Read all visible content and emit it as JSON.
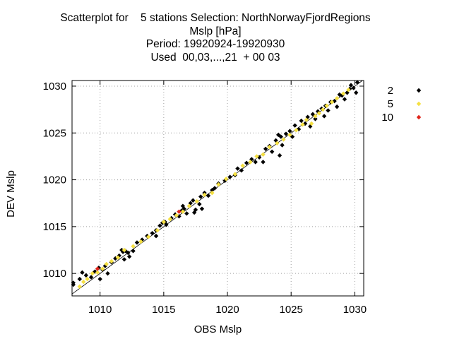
{
  "chart_data": {
    "type": "scatter",
    "title_lines": [
      "Scatterplot for    5 stations Selection: NorthNorwayFjordRegions",
      "Mslp [hPa]",
      "Period: 19920924-19920930",
      "Used  00,03,...,21  + 00 03"
    ],
    "xlabel": "OBS Mslp",
    "ylabel": "DEV Mslp",
    "xlim": [
      1007.8,
      1030.7
    ],
    "ylim": [
      1007.6,
      1030.6
    ],
    "xticks": [
      1010,
      1015,
      1020,
      1025,
      1030
    ],
    "yticks": [
      1010,
      1015,
      1020,
      1025,
      1030
    ],
    "grid": true,
    "legend_position": "right, outside plot",
    "reference_line": "y = x",
    "series": [
      {
        "name": "2",
        "color": "#000000",
        "points": [
          [
            1007.9,
            1009.0
          ],
          [
            1007.9,
            1008.8
          ],
          [
            1008.4,
            1009.4
          ],
          [
            1008.6,
            1010.1
          ],
          [
            1008.9,
            1009.8
          ],
          [
            1009.3,
            1009.6
          ],
          [
            1009.6,
            1010.2
          ],
          [
            1009.9,
            1010.6
          ],
          [
            1010.0,
            1009.4
          ],
          [
            1010.2,
            1010.4
          ],
          [
            1010.4,
            1010.8
          ],
          [
            1010.6,
            1010.0
          ],
          [
            1010.9,
            1011.2
          ],
          [
            1011.2,
            1011.6
          ],
          [
            1011.5,
            1011.9
          ],
          [
            1011.7,
            1012.5
          ],
          [
            1011.8,
            1012.3
          ],
          [
            1011.9,
            1011.5
          ],
          [
            1012.0,
            1012.4
          ],
          [
            1012.2,
            1012.2
          ],
          [
            1012.3,
            1011.8
          ],
          [
            1012.6,
            1012.4
          ],
          [
            1012.9,
            1013.3
          ],
          [
            1013.3,
            1013.6
          ],
          [
            1013.7,
            1014.0
          ],
          [
            1014.1,
            1014.3
          ],
          [
            1014.4,
            1014.6
          ],
          [
            1014.4,
            1014.0
          ],
          [
            1014.7,
            1015.1
          ],
          [
            1014.9,
            1015.4
          ],
          [
            1015.1,
            1015.5
          ],
          [
            1015.2,
            1015.2
          ],
          [
            1015.6,
            1015.9
          ],
          [
            1015.9,
            1016.3
          ],
          [
            1016.2,
            1016.1
          ],
          [
            1016.4,
            1016.7
          ],
          [
            1016.6,
            1016.9
          ],
          [
            1016.5,
            1017.2
          ],
          [
            1016.8,
            1016.4
          ],
          [
            1017.1,
            1017.5
          ],
          [
            1017.3,
            1017.8
          ],
          [
            1017.4,
            1016.5
          ],
          [
            1017.5,
            1016.8
          ],
          [
            1017.8,
            1017.4
          ],
          [
            1017.9,
            1018.2
          ],
          [
            1018.0,
            1016.9
          ],
          [
            1018.2,
            1018.6
          ],
          [
            1018.5,
            1018.3
          ],
          [
            1018.8,
            1018.9
          ],
          [
            1019.0,
            1019.1
          ],
          [
            1019.3,
            1019.6
          ],
          [
            1019.8,
            1019.9
          ],
          [
            1020.2,
            1020.3
          ],
          [
            1020.6,
            1020.5
          ],
          [
            1020.8,
            1021.2
          ],
          [
            1021.1,
            1021.0
          ],
          [
            1021.5,
            1021.8
          ],
          [
            1021.9,
            1022.2
          ],
          [
            1022.2,
            1021.9
          ],
          [
            1022.5,
            1022.4
          ],
          [
            1022.8,
            1021.9
          ],
          [
            1023.0,
            1023.3
          ],
          [
            1023.3,
            1023.6
          ],
          [
            1023.5,
            1023.0
          ],
          [
            1023.8,
            1024.2
          ],
          [
            1024.0,
            1024.8
          ],
          [
            1024.1,
            1022.6
          ],
          [
            1024.2,
            1024.6
          ],
          [
            1024.3,
            1023.7
          ],
          [
            1024.6,
            1024.9
          ],
          [
            1024.9,
            1025.2
          ],
          [
            1025.1,
            1024.6
          ],
          [
            1025.3,
            1025.8
          ],
          [
            1025.6,
            1025.4
          ],
          [
            1025.8,
            1026.3
          ],
          [
            1026.1,
            1026.0
          ],
          [
            1026.3,
            1026.7
          ],
          [
            1026.5,
            1025.7
          ],
          [
            1026.7,
            1027.0
          ],
          [
            1026.9,
            1026.5
          ],
          [
            1027.1,
            1027.3
          ],
          [
            1027.4,
            1027.6
          ],
          [
            1027.6,
            1026.8
          ],
          [
            1027.7,
            1027.9
          ],
          [
            1027.9,
            1027.4
          ],
          [
            1028.1,
            1028.3
          ],
          [
            1028.4,
            1028.4
          ],
          [
            1028.6,
            1027.8
          ],
          [
            1028.8,
            1029.1
          ],
          [
            1029.0,
            1029.0
          ],
          [
            1029.2,
            1028.6
          ],
          [
            1029.4,
            1029.3
          ],
          [
            1029.6,
            1029.7
          ],
          [
            1029.7,
            1030.1
          ],
          [
            1029.9,
            1029.8
          ],
          [
            1030.1,
            1029.3
          ],
          [
            1030.2,
            1030.4
          ]
        ]
      },
      {
        "name": "5",
        "color": "#f5e042",
        "points": [
          [
            1008.4,
            1008.6
          ],
          [
            1008.7,
            1009.1
          ],
          [
            1009.0,
            1009.4
          ],
          [
            1009.4,
            1010.0
          ],
          [
            1009.8,
            1010.1
          ],
          [
            1010.2,
            1010.5
          ],
          [
            1010.5,
            1011.0
          ],
          [
            1010.9,
            1011.3
          ],
          [
            1011.4,
            1011.7
          ],
          [
            1011.9,
            1012.5
          ],
          [
            1012.6,
            1012.9
          ],
          [
            1013.2,
            1013.4
          ],
          [
            1013.8,
            1013.9
          ],
          [
            1014.5,
            1014.6
          ],
          [
            1015.0,
            1015.5
          ],
          [
            1015.5,
            1015.8
          ],
          [
            1016.0,
            1016.2
          ],
          [
            1016.5,
            1016.6
          ],
          [
            1017.0,
            1017.2
          ],
          [
            1017.6,
            1017.7
          ],
          [
            1018.2,
            1018.4
          ],
          [
            1018.8,
            1018.6
          ],
          [
            1019.3,
            1019.5
          ],
          [
            1019.9,
            1020.1
          ],
          [
            1020.6,
            1020.6
          ],
          [
            1021.2,
            1021.5
          ],
          [
            1021.8,
            1021.9
          ],
          [
            1022.3,
            1022.5
          ],
          [
            1022.8,
            1022.7
          ],
          [
            1023.3,
            1023.5
          ],
          [
            1023.9,
            1023.9
          ],
          [
            1024.4,
            1024.3
          ],
          [
            1024.9,
            1024.8
          ],
          [
            1025.4,
            1025.3
          ],
          [
            1025.9,
            1025.9
          ],
          [
            1026.2,
            1026.4
          ],
          [
            1026.6,
            1026.0
          ],
          [
            1026.9,
            1026.8
          ],
          [
            1027.2,
            1027.1
          ],
          [
            1027.5,
            1027.5
          ],
          [
            1027.8,
            1027.9
          ],
          [
            1028.2,
            1028.3
          ],
          [
            1028.6,
            1028.7
          ],
          [
            1029.1,
            1029.2
          ],
          [
            1029.5,
            1029.6
          ]
        ]
      },
      {
        "name": "10",
        "color": "#e0241a",
        "points": [
          [
            1016.2,
            1016.6
          ],
          [
            1009.8,
            1010.5
          ]
        ]
      }
    ]
  }
}
